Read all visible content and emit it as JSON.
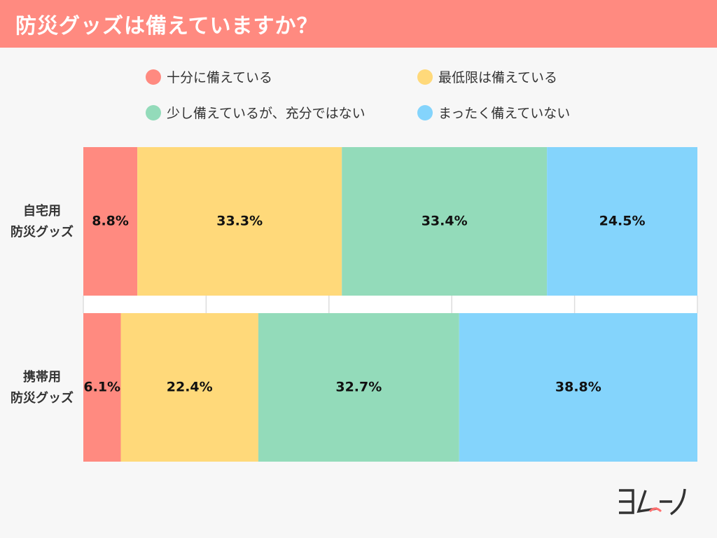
{
  "header": {
    "title": "防災グッズは備えていますか？"
  },
  "legend": [
    {
      "label": "十分に備えている",
      "color": "#ff8a80"
    },
    {
      "label": "最低限は備えている",
      "color": "#ffd97a"
    },
    {
      "label": "少し備えているが、充分ではない",
      "color": "#93dbba"
    },
    {
      "label": "まったく備えていない",
      "color": "#84d4fc"
    }
  ],
  "chart_data": {
    "type": "bar",
    "orientation": "horizontal",
    "stacked": true,
    "percent_stacked": true,
    "categories": [
      [
        "自宅用",
        "防災グッズ"
      ],
      [
        "携帯用",
        "防災グッズ"
      ]
    ],
    "series": [
      {
        "name": "十分に備えている",
        "values": [
          8.8,
          6.1
        ],
        "color": "#ff8a80"
      },
      {
        "name": "最低限は備えている",
        "values": [
          33.3,
          22.4
        ],
        "color": "#ffd97a"
      },
      {
        "name": "少し備えているが、充分ではない",
        "values": [
          33.4,
          32.7
        ],
        "color": "#93dbba"
      },
      {
        "name": "まったく備えていない",
        "values": [
          24.5,
          38.8
        ],
        "color": "#84d4fc"
      }
    ],
    "data_labels": [
      [
        "8.8%",
        "33.3%",
        "33.4%",
        "24.5%"
      ],
      [
        "6.1%",
        "22.4%",
        "32.7%",
        "38.8%"
      ]
    ],
    "legend_position": "top",
    "grid": true
  },
  "logo": {
    "text": "ヨムーノ",
    "accent_color": "#ff6f6f"
  }
}
